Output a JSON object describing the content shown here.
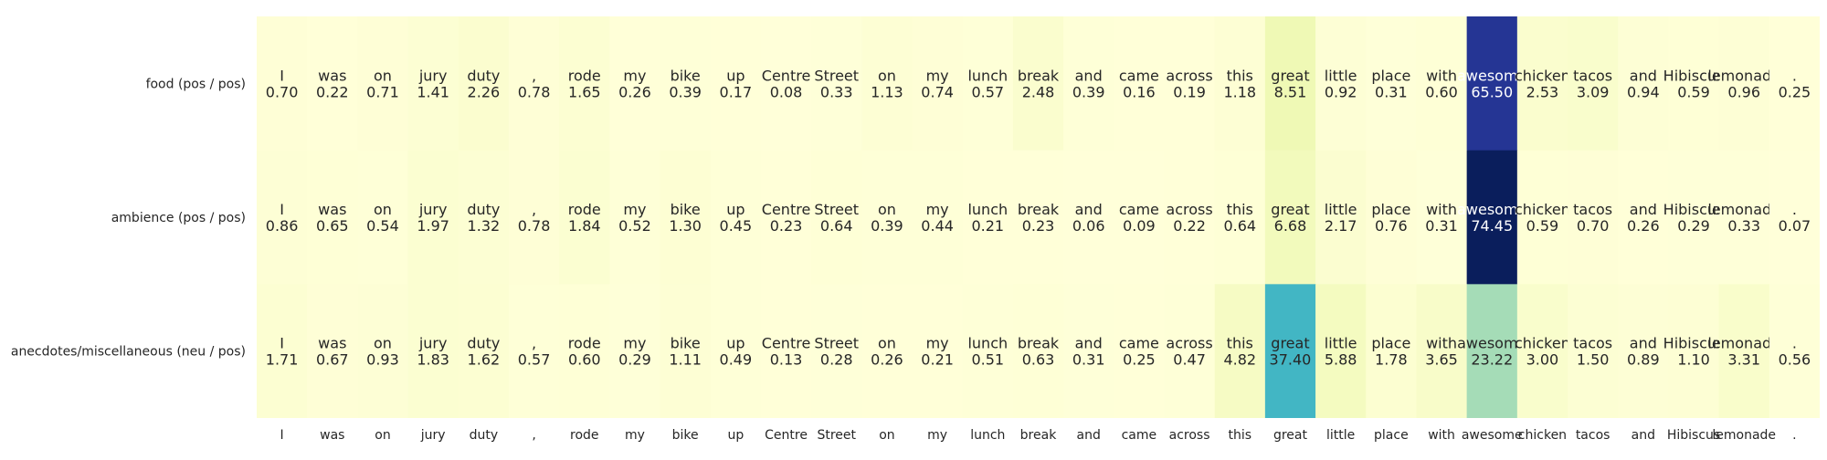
{
  "chart_data": {
    "type": "heatmap",
    "tokens": [
      "I",
      "was",
      "on",
      "jury",
      "duty",
      ",",
      "rode",
      "my",
      "bike",
      "up",
      "Centre",
      "Street",
      "on",
      "my",
      "lunch",
      "break",
      "and",
      "came",
      "across",
      "this",
      "great",
      "little",
      "place",
      "with",
      "awesome",
      "chicken",
      "tacos",
      "and",
      "Hibiscus",
      "lemonade",
      "."
    ],
    "rows": [
      {
        "label": "food (pos / pos)",
        "values": [
          0.7,
          0.22,
          0.71,
          1.41,
          2.26,
          0.78,
          1.65,
          0.26,
          0.39,
          0.17,
          0.08,
          0.33,
          1.13,
          0.74,
          0.57,
          2.48,
          0.39,
          0.16,
          0.19,
          1.18,
          8.51,
          0.92,
          0.31,
          0.6,
          65.5,
          2.53,
          3.09,
          0.94,
          0.59,
          0.96,
          0.25
        ]
      },
      {
        "label": "ambience (pos / pos)",
        "values": [
          0.86,
          0.65,
          0.54,
          1.97,
          1.32,
          0.78,
          1.84,
          0.52,
          1.3,
          0.45,
          0.23,
          0.64,
          0.39,
          0.44,
          0.21,
          0.23,
          0.06,
          0.09,
          0.22,
          0.64,
          6.68,
          2.17,
          0.76,
          0.31,
          74.45,
          0.59,
          0.7,
          0.26,
          0.29,
          0.33,
          0.07
        ]
      },
      {
        "label": "anecdotes/miscellaneous (neu / pos)",
        "values": [
          1.71,
          0.67,
          0.93,
          1.83,
          1.62,
          0.57,
          0.6,
          0.29,
          1.11,
          0.49,
          0.13,
          0.28,
          0.26,
          0.21,
          0.51,
          0.63,
          0.31,
          0.25,
          0.47,
          4.82,
          37.4,
          5.88,
          1.78,
          3.65,
          23.22,
          3.0,
          1.5,
          0.89,
          1.1,
          3.31,
          0.56
        ]
      }
    ],
    "x_tick_labels": [
      "I",
      "was",
      "on",
      "jury",
      "duty",
      ",",
      "rode",
      "my",
      "bike",
      "up",
      "Centre",
      "Street",
      "on",
      "my",
      "lunch",
      "break",
      "and",
      "came",
      "across",
      "this",
      "great",
      "little",
      "place",
      "with",
      "awesome",
      "chicken",
      "tacos",
      "and",
      "Hibiscus",
      "lemonade",
      "."
    ],
    "colormap": "YlGnBu",
    "vmin": 0,
    "vmax": 75,
    "colorbar": false,
    "grid": false
  }
}
